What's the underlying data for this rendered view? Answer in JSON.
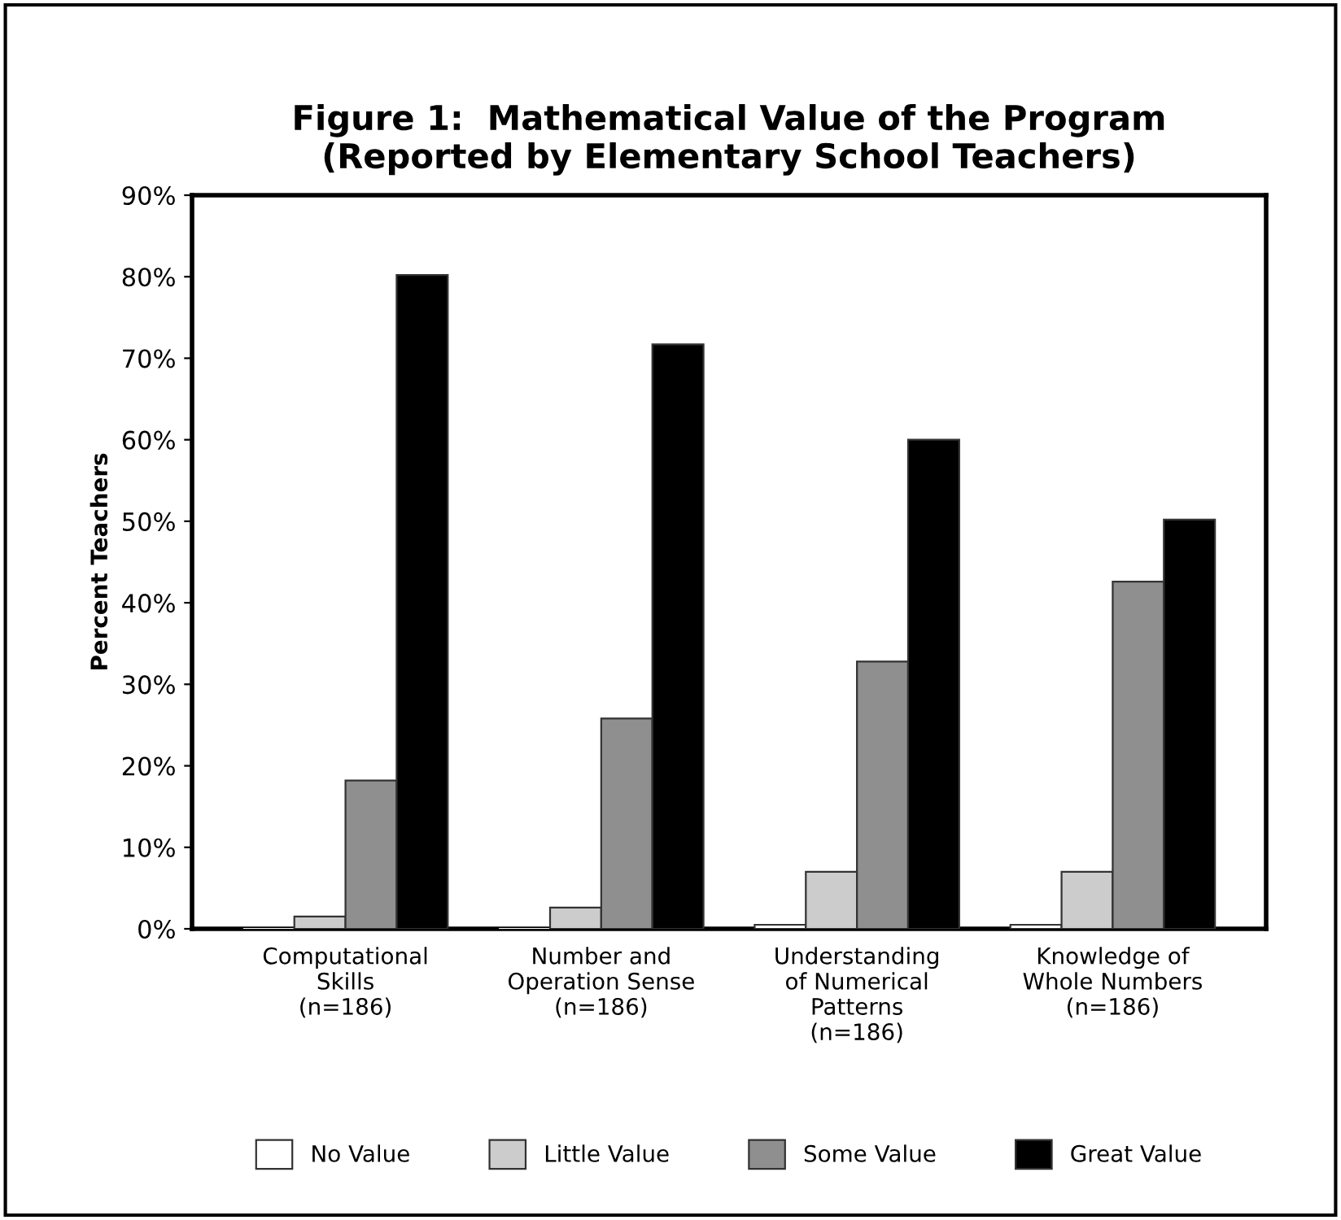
{
  "chart_data": {
    "type": "bar",
    "title": "Figure 1:  Mathematical Value of the Program\n(Reported by Elementary School Teachers)",
    "ylabel": "Percent Teachers",
    "categories": [
      "Computational\nSkills\n(n=186)",
      "Number and\nOperation Sense\n(n=186)",
      "Understanding\nof Numerical\nPatterns\n(n=186)",
      "Knowledge of\nWhole Numbers\n(n=186)"
    ],
    "series": [
      {
        "name": "No Value",
        "color": "#ffffff",
        "values": [
          0,
          0,
          0.5,
          0.5
        ]
      },
      {
        "name": "Little Value",
        "color": "#cccccc",
        "values": [
          1.5,
          2.6,
          7,
          7
        ]
      },
      {
        "name": "Some Value",
        "color": "#8f8f8f",
        "values": [
          18.2,
          25.8,
          32.8,
          42.6
        ]
      },
      {
        "name": "Great Value",
        "color": "#000000",
        "values": [
          80.2,
          71.7,
          60,
          50.2
        ]
      }
    ],
    "ylim": [
      0,
      90
    ],
    "yticks": [
      {
        "value": 0,
        "label": "0%"
      },
      {
        "value": 10,
        "label": "10%"
      },
      {
        "value": 20,
        "label": "20%"
      },
      {
        "value": 30,
        "label": "30%"
      },
      {
        "value": 40,
        "label": "40%"
      },
      {
        "value": 50,
        "label": "50%"
      },
      {
        "value": 60,
        "label": "60%"
      },
      {
        "value": 70,
        "label": "70%"
      },
      {
        "value": 80,
        "label": "80%"
      },
      {
        "value": 90,
        "label": "90%"
      }
    ],
    "grid": false,
    "legend": "bottom"
  }
}
